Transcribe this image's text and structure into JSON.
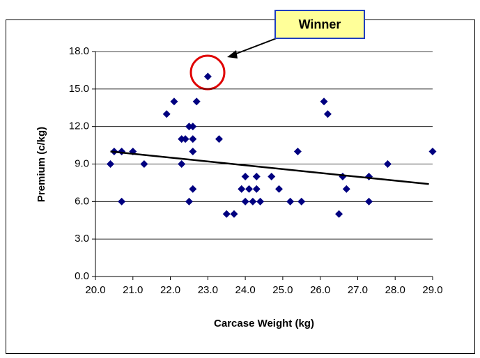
{
  "chart_data": {
    "type": "scatter",
    "xlabel": "Carcase Weight (kg)",
    "ylabel": "Premium (c/kg)",
    "annotation": "Winner",
    "series": [
      {
        "color": "#000080",
        "x": [
          20.4,
          20.5,
          20.7,
          20.7,
          21.0,
          21.3,
          21.9,
          22.1,
          22.3,
          22.3,
          22.4,
          22.5,
          22.6,
          22.6,
          22.6,
          22.5,
          22.6,
          22.7,
          23.0,
          23.3,
          23.5,
          23.7,
          24.0,
          23.9,
          24.0,
          24.1,
          24.2,
          24.3,
          24.3,
          24.4,
          24.7,
          24.9,
          25.2,
          25.4,
          25.5,
          26.1,
          26.2,
          26.5,
          26.6,
          26.7,
          27.3,
          27.3,
          27.8,
          29.0
        ],
        "values": [
          9,
          10,
          10,
          6,
          10,
          9,
          13,
          14,
          9,
          11,
          11,
          12,
          12,
          11,
          10,
          6,
          7,
          14,
          16,
          11,
          5,
          5,
          8,
          7,
          6,
          7,
          6,
          8,
          7,
          6,
          8,
          7,
          6,
          10,
          6,
          14,
          13,
          5,
          8,
          7,
          6,
          8,
          9,
          10
        ]
      }
    ],
    "trendline": {
      "color": "#000000",
      "x": [
        20.4,
        28.9
      ],
      "values": [
        10.0,
        7.4
      ]
    },
    "xlim": [
      20,
      29
    ],
    "xticks": [
      {
        "value": 20,
        "label": "20.0"
      },
      {
        "value": 21,
        "label": "21.0"
      },
      {
        "value": 22,
        "label": "22.0"
      },
      {
        "value": 23,
        "label": "23.0"
      },
      {
        "value": 24,
        "label": "24.0"
      },
      {
        "value": 25,
        "label": "25.0"
      },
      {
        "value": 26,
        "label": "26.0"
      },
      {
        "value": 27,
        "label": "27.0"
      },
      {
        "value": 28,
        "label": "28.0"
      },
      {
        "value": 29,
        "label": "29.0"
      }
    ],
    "ylim": [
      0,
      18
    ],
    "yticks": [
      {
        "value": 0,
        "label": "0.0"
      },
      {
        "value": 3,
        "label": "3.0"
      },
      {
        "value": 6,
        "label": "6.0"
      },
      {
        "value": 9,
        "label": "9.0"
      },
      {
        "value": 12,
        "label": "12.0"
      },
      {
        "value": 15,
        "label": "15.0"
      },
      {
        "value": 18,
        "label": "18.0"
      }
    ],
    "grid": true
  }
}
